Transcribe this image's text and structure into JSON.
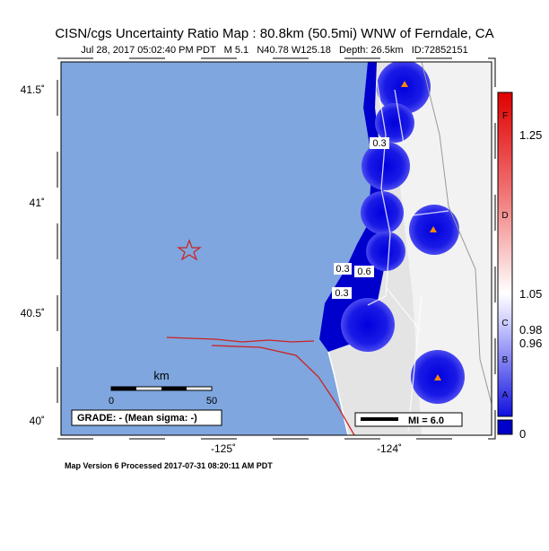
{
  "header": {
    "title": "CISN/cgs Uncertainty Ratio Map : 80.8km (50.5mi) WNW of Ferndale, CA",
    "subtitle": "Jul 28, 2017 05:02:40 PM PDT   M 5.1   N40.78 W125.18   Depth: 26.5km   ID:72852151"
  },
  "axes": {
    "latitude_labels": [
      "41.5˚",
      "41˚",
      "40.5˚",
      "40˚"
    ],
    "longitude_labels": [
      "-125˚",
      "-124˚"
    ]
  },
  "map": {
    "contour_labels": [
      "0.3",
      "0.3",
      "0.6",
      "0.3"
    ],
    "scale_bar": {
      "unit": "km",
      "start": "0",
      "end": "50"
    },
    "grade": "GRADE: - (Mean sigma: -)",
    "intensity_legend": "MI = 6.0"
  },
  "colorbar": {
    "letters": [
      "F",
      "D",
      "C",
      "B",
      "A"
    ],
    "values": [
      "1.25",
      "1.05",
      "0.98",
      "0.96",
      "0"
    ]
  },
  "footer": "Map Version 6 Processed 2017-07-31 08:20:11 AM PDT"
}
